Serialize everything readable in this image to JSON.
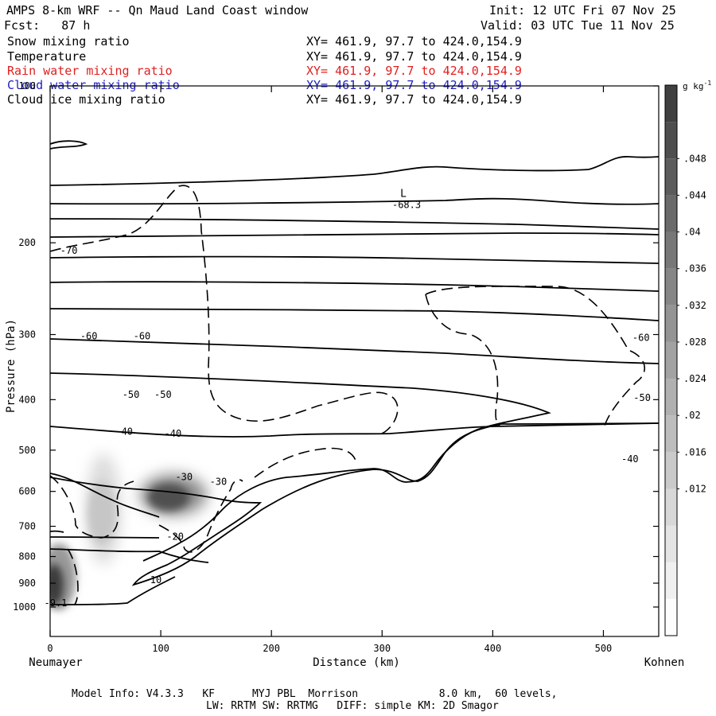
{
  "header": {
    "title": "AMPS 8-km WRF -- Qn Maud Land Coast window",
    "init": "Init: 12 UTC Fri 07 Nov 25",
    "fcst": "Fcst:   87 h",
    "valid": "Valid: 03 UTC Tue 11 Nov 25"
  },
  "fields": [
    {
      "name": "Snow mixing ratio",
      "xy": "XY= 461.9, 97.7 to 424.0,154.9",
      "color": "#000000"
    },
    {
      "name": "Temperature",
      "xy": "XY= 461.9, 97.7 to 424.0,154.9",
      "color": "#000000"
    },
    {
      "name": "Rain water mixing ratio",
      "xy": "XY= 461.9, 97.7 to 424.0,154.9",
      "color": "#e02020"
    },
    {
      "name": "Cloud water mixing ratio",
      "xy": "XY= 461.9, 97.7 to 424.0,154.9",
      "color": "#2020c0"
    },
    {
      "name": "Cloud ice mixing ratio",
      "xy": "XY= 461.9, 97.7 to 424.0,154.9",
      "color": "#000000"
    }
  ],
  "chart_data": {
    "type": "cross-section",
    "ylabel": "Pressure (hPa)",
    "xlabel": "Distance (km)",
    "x_start_label": "Neumayer",
    "x_end_label": "Kohnen",
    "xlim": [
      0,
      550
    ],
    "ylim": [
      1050,
      100
    ],
    "x_ticks": [
      0,
      100,
      200,
      300,
      400,
      500
    ],
    "y_ticks": [
      100,
      200,
      300,
      400,
      500,
      600,
      700,
      800,
      900,
      1000
    ],
    "low_marker": {
      "label": "L",
      "value": "-68.3",
      "x": 325,
      "pressure": 165
    },
    "contour_labels": [
      {
        "text": "-70",
        "x": 17,
        "p": 207
      },
      {
        "text": "-60",
        "x": 35,
        "p": 302
      },
      {
        "text": "-60",
        "x": 83,
        "p": 302
      },
      {
        "text": "-60",
        "x": 534,
        "p": 304
      },
      {
        "text": "-50",
        "x": 73,
        "p": 391
      },
      {
        "text": "-50",
        "x": 102,
        "p": 391
      },
      {
        "text": "-50",
        "x": 535,
        "p": 397
      },
      {
        "text": "-40",
        "x": 67,
        "p": 461
      },
      {
        "text": "-40",
        "x": 111,
        "p": 465
      },
      {
        "text": "-40",
        "x": 524,
        "p": 520
      },
      {
        "text": "-30",
        "x": 121,
        "p": 563
      },
      {
        "text": "-30",
        "x": 152,
        "p": 575
      },
      {
        "text": "-20",
        "x": 113,
        "p": 732
      },
      {
        "text": "-10",
        "x": 93,
        "p": 887
      },
      {
        "text": "-9.1",
        "x": 5,
        "p": 983
      }
    ],
    "colorbar": {
      "unit": "g kg",
      "unit_exp": "-1",
      "labels": [
        ".048",
        ".044",
        ".04",
        ".036",
        ".032",
        ".028",
        ".024",
        ".02",
        ".016",
        ".012"
      ],
      "shades": [
        "#fdfdfd",
        "#f0f0f0",
        "#e4e4e4",
        "#d8d8d8",
        "#cacaca",
        "#bdbdbd",
        "#b0b0b0",
        "#a2a2a2",
        "#949494",
        "#868686",
        "#787878",
        "#6a6a6a",
        "#5c5c5c",
        "#4e4e4e",
        "#404040"
      ]
    }
  },
  "footer": {
    "line1": "Model Info: V4.3.3   KF      MYJ PBL  Morrison             8.0 km,  60 levels,",
    "line2": "LW: RRTM SW: RRTMG   DIFF: simple KM: 2D Smagor"
  }
}
